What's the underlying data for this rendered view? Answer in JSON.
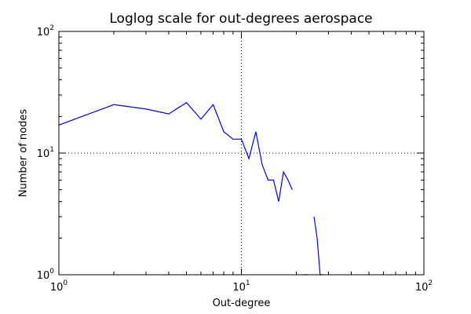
{
  "chart_data": {
    "type": "line",
    "title": "Loglog scale for out-degrees aerospace",
    "xlabel": "Out-degree",
    "ylabel": "Number of nodes",
    "xscale": "log",
    "yscale": "log",
    "xlim": [
      1,
      100
    ],
    "ylim": [
      1,
      100
    ],
    "grid": "major, dotted",
    "line_color": "#0000ff",
    "x_ticks": [
      {
        "base": "10",
        "exp": "0",
        "value": 1
      },
      {
        "base": "10",
        "exp": "1",
        "value": 10
      },
      {
        "base": "10",
        "exp": "2",
        "value": 100
      }
    ],
    "y_ticks": [
      {
        "base": "10",
        "exp": "0",
        "value": 1
      },
      {
        "base": "10",
        "exp": "1",
        "value": 10
      },
      {
        "base": "10",
        "exp": "2",
        "value": 100
      }
    ],
    "series": [
      {
        "segments": [
          {
            "x": [
              1,
              2,
              3,
              4,
              5,
              6,
              7,
              8,
              9,
              10,
              11,
              12,
              13,
              14,
              15,
              16,
              17,
              18,
              19
            ],
            "y": [
              17,
              25,
              23,
              21,
              26,
              19,
              25,
              15,
              13,
              13,
              9,
              15,
              8,
              6,
              6,
              4,
              7,
              6,
              5
            ]
          },
          {
            "x": [
              22,
              23
            ],
            "y": [
              1,
              1
            ]
          },
          {
            "x": [
              25,
              26,
              27,
              28
            ],
            "y": [
              3,
              2,
              1,
              1
            ]
          }
        ]
      }
    ]
  }
}
